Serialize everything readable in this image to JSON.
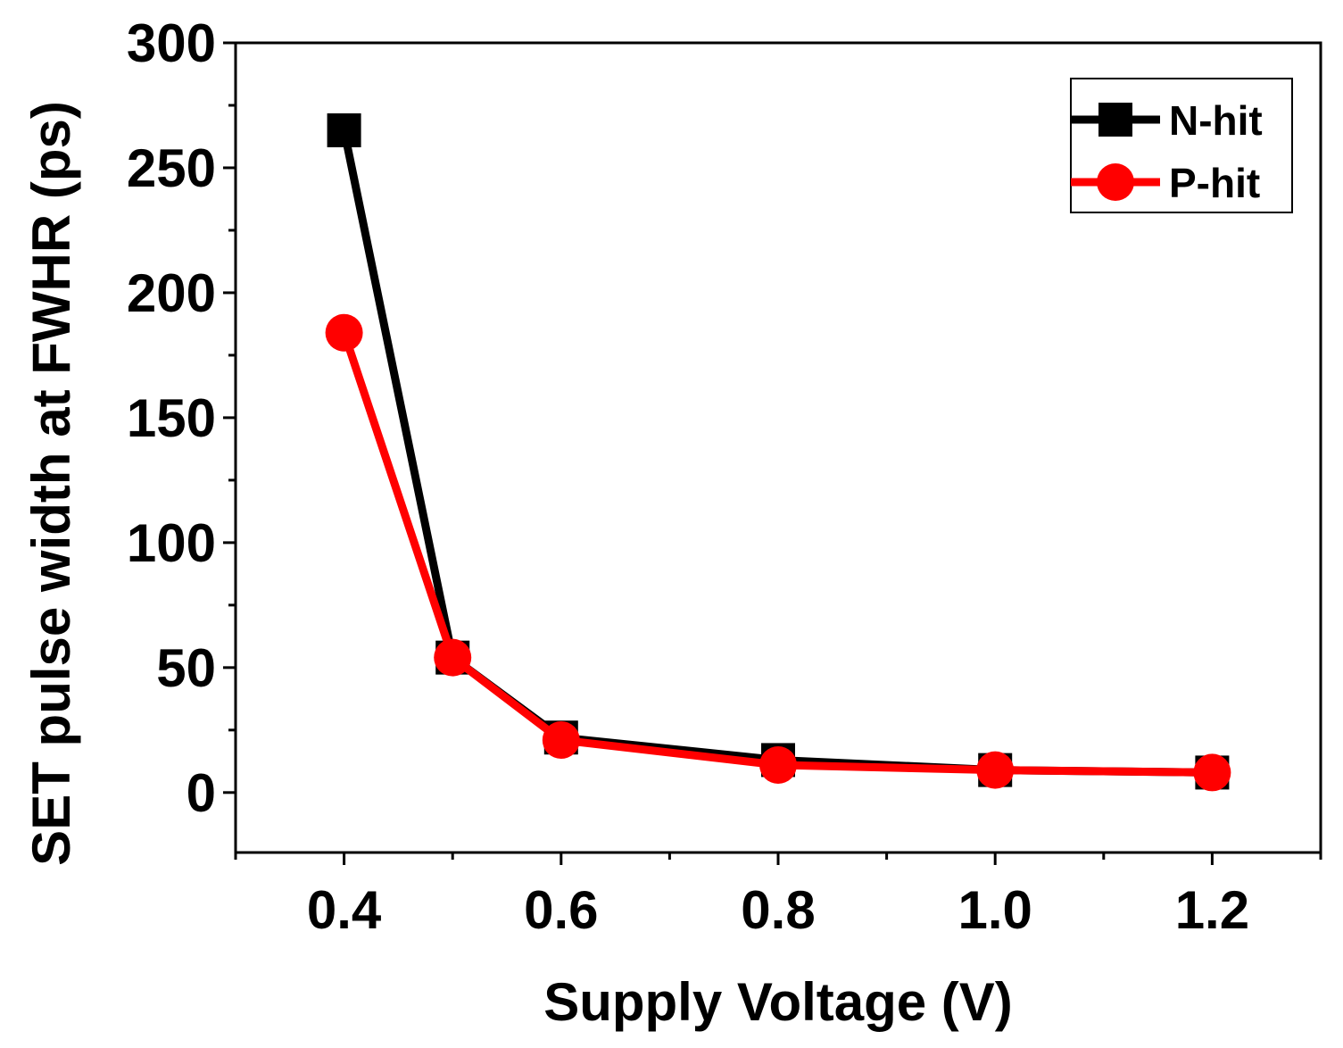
{
  "chart_data": {
    "type": "line",
    "xlabel": "Supply Voltage (V)",
    "ylabel": "SET pulse width at FWHR (ps)",
    "xlim": [
      0.3,
      1.3
    ],
    "ylim": [
      -24,
      300
    ],
    "x_ticks": [
      0.4,
      0.6,
      0.8,
      1.0,
      1.2
    ],
    "x_tick_labels": [
      "0.4",
      "0.6",
      "0.8",
      "1.0",
      "1.2"
    ],
    "y_ticks": [
      0,
      50,
      100,
      150,
      200,
      250,
      300
    ],
    "y_tick_labels": [
      "0",
      "50",
      "100",
      "150",
      "200",
      "250",
      "300"
    ],
    "legend_position": "top-right",
    "series": [
      {
        "name": "N-hit",
        "color": "#000000",
        "marker": "square",
        "x": [
          0.4,
          0.5,
          0.6,
          0.8,
          1.0,
          1.2
        ],
        "values": [
          265,
          54,
          22,
          13,
          9,
          8
        ]
      },
      {
        "name": "P-hit",
        "color": "#ff0000",
        "marker": "circle",
        "x": [
          0.4,
          0.5,
          0.6,
          0.8,
          1.0,
          1.2
        ],
        "values": [
          184,
          54,
          21,
          11,
          9,
          8
        ]
      }
    ]
  }
}
